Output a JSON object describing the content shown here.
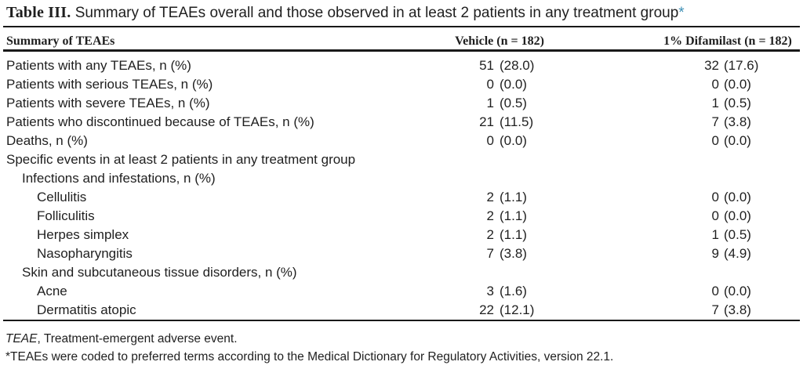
{
  "title": {
    "label": "Table III.",
    "text": " Summary of TEAEs overall and those observed in at least 2 patients in any treatment group",
    "asterisk": "*"
  },
  "colors": {
    "asterisk": "#3d8fb5",
    "text": "#1f1f1f",
    "rule": "#191919"
  },
  "header": {
    "col1": "Summary of TEAEs",
    "col2": "Vehicle (n = 182)",
    "col3": "1% Difamilast (n = 182)"
  },
  "rows": [
    {
      "label": "Patients with any TEAEs, n (%)",
      "indent": 0,
      "vehicle_n": "51",
      "vehicle_pct": "(28.0)",
      "difamilast_n": "32",
      "difamilast_pct": "(17.6)"
    },
    {
      "label": "Patients with serious TEAEs, n (%)",
      "indent": 0,
      "vehicle_n": "0",
      "vehicle_pct": "(0.0)",
      "difamilast_n": "0",
      "difamilast_pct": "(0.0)"
    },
    {
      "label": "Patients with severe TEAEs, n (%)",
      "indent": 0,
      "vehicle_n": "1",
      "vehicle_pct": "(0.5)",
      "difamilast_n": "1",
      "difamilast_pct": "(0.5)"
    },
    {
      "label": "Patients who discontinued because of TEAEs, n (%)",
      "indent": 0,
      "vehicle_n": "21",
      "vehicle_pct": "(11.5)",
      "difamilast_n": "7",
      "difamilast_pct": "(3.8)"
    },
    {
      "label": "Deaths, n (%)",
      "indent": 0,
      "vehicle_n": "0",
      "vehicle_pct": "(0.0)",
      "difamilast_n": "0",
      "difamilast_pct": "(0.0)"
    },
    {
      "label": "Specific events in at least 2 patients in any treatment group",
      "indent": 0,
      "vehicle_n": "",
      "vehicle_pct": "",
      "difamilast_n": "",
      "difamilast_pct": ""
    },
    {
      "label": "Infections and infestations, n (%)",
      "indent": 1,
      "vehicle_n": "",
      "vehicle_pct": "",
      "difamilast_n": "",
      "difamilast_pct": ""
    },
    {
      "label": "Cellulitis",
      "indent": 2,
      "vehicle_n": "2",
      "vehicle_pct": "(1.1)",
      "difamilast_n": "0",
      "difamilast_pct": "(0.0)"
    },
    {
      "label": "Folliculitis",
      "indent": 2,
      "vehicle_n": "2",
      "vehicle_pct": "(1.1)",
      "difamilast_n": "0",
      "difamilast_pct": "(0.0)"
    },
    {
      "label": "Herpes simplex",
      "indent": 2,
      "vehicle_n": "2",
      "vehicle_pct": "(1.1)",
      "difamilast_n": "1",
      "difamilast_pct": "(0.5)"
    },
    {
      "label": "Nasopharyngitis",
      "indent": 2,
      "vehicle_n": "7",
      "vehicle_pct": "(3.8)",
      "difamilast_n": "9",
      "difamilast_pct": "(4.9)"
    },
    {
      "label": "Skin and subcutaneous tissue disorders, n (%)",
      "indent": 1,
      "vehicle_n": "",
      "vehicle_pct": "",
      "difamilast_n": "",
      "difamilast_pct": ""
    },
    {
      "label": "Acne",
      "indent": 2,
      "vehicle_n": "3",
      "vehicle_pct": "(1.6)",
      "difamilast_n": "0",
      "difamilast_pct": "(0.0)"
    },
    {
      "label": "Dermatitis atopic",
      "indent": 2,
      "vehicle_n": "22",
      "vehicle_pct": "(12.1)",
      "difamilast_n": "7",
      "difamilast_pct": "(3.8)"
    }
  ],
  "footnotes": [
    {
      "italic": "TEAE",
      "text": ", Treatment-emergent adverse event."
    },
    {
      "italic": "",
      "text": "*TEAEs were coded to preferred terms according to the Medical Dictionary for Regulatory Activities, version 22.1."
    }
  ]
}
